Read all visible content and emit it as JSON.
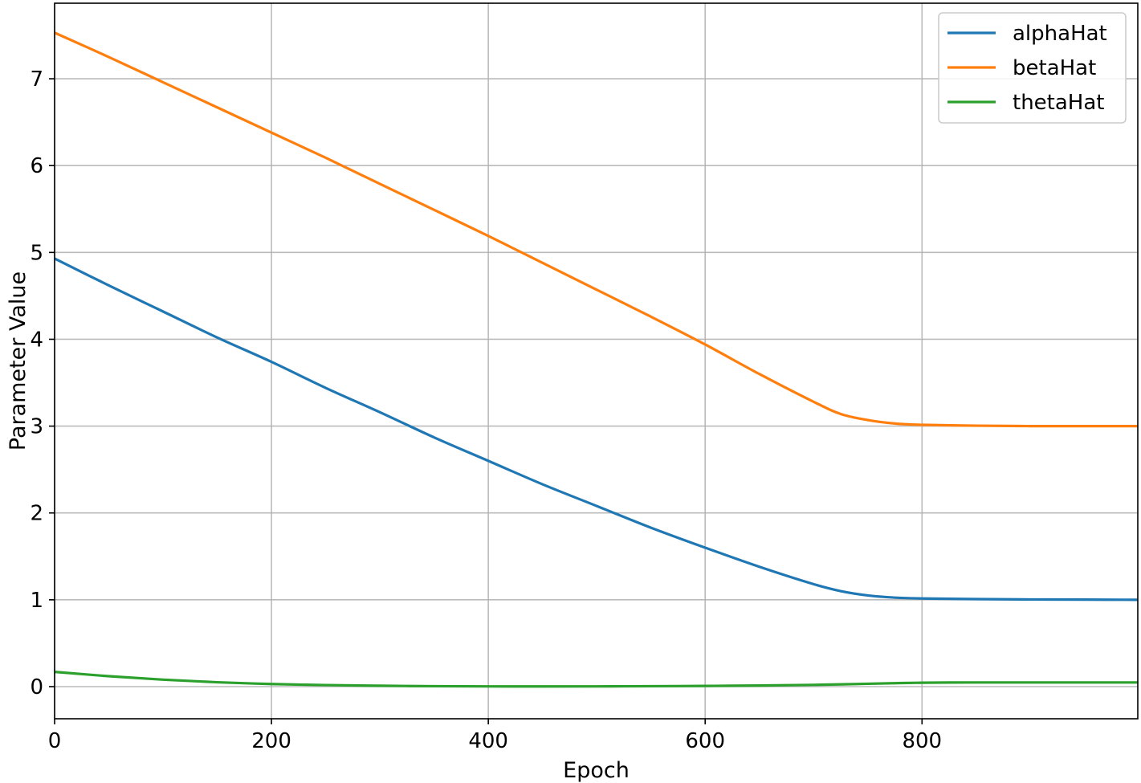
{
  "chart_data": {
    "type": "line",
    "title": "",
    "xlabel": "Epoch",
    "ylabel": "Parameter Value",
    "xlim": [
      0,
      999
    ],
    "ylim": [
      -0.37,
      7.87
    ],
    "xticks": [
      0,
      200,
      400,
      600,
      800
    ],
    "yticks": [
      0,
      1,
      2,
      3,
      4,
      5,
      6,
      7
    ],
    "grid": true,
    "legend_position": "upper right",
    "series": [
      {
        "name": "alphaHat",
        "color": "#1f77b4",
        "x": [
          0,
          50,
          100,
          150,
          200,
          250,
          300,
          350,
          400,
          450,
          500,
          550,
          600,
          650,
          700,
          725,
          750,
          775,
          800,
          850,
          900,
          950,
          999
        ],
        "y": [
          4.93,
          4.62,
          4.32,
          4.02,
          3.74,
          3.44,
          3.16,
          2.87,
          2.6,
          2.33,
          2.08,
          1.83,
          1.6,
          1.38,
          1.18,
          1.1,
          1.05,
          1.025,
          1.015,
          1.008,
          1.004,
          1.002,
          1.0
        ]
      },
      {
        "name": "betaHat",
        "color": "#ff7f0e",
        "x": [
          0,
          50,
          100,
          150,
          200,
          250,
          300,
          350,
          400,
          450,
          500,
          550,
          600,
          650,
          700,
          725,
          750,
          775,
          800,
          850,
          900,
          950,
          999
        ],
        "y": [
          7.53,
          7.25,
          6.96,
          6.67,
          6.38,
          6.09,
          5.79,
          5.49,
          5.19,
          4.88,
          4.57,
          4.26,
          3.94,
          3.6,
          3.28,
          3.14,
          3.07,
          3.03,
          3.015,
          3.005,
          3.0,
          3.0,
          3.0
        ]
      },
      {
        "name": "thetaHat",
        "color": "#2ca02c",
        "x": [
          0,
          50,
          100,
          150,
          200,
          250,
          300,
          350,
          400,
          450,
          500,
          550,
          600,
          650,
          700,
          750,
          800,
          850,
          900,
          950,
          999
        ],
        "y": [
          0.17,
          0.12,
          0.08,
          0.05,
          0.03,
          0.018,
          0.01,
          0.005,
          0.003,
          0.002,
          0.003,
          0.005,
          0.008,
          0.013,
          0.02,
          0.033,
          0.045,
          0.048,
          0.048,
          0.048,
          0.048
        ]
      }
    ]
  }
}
